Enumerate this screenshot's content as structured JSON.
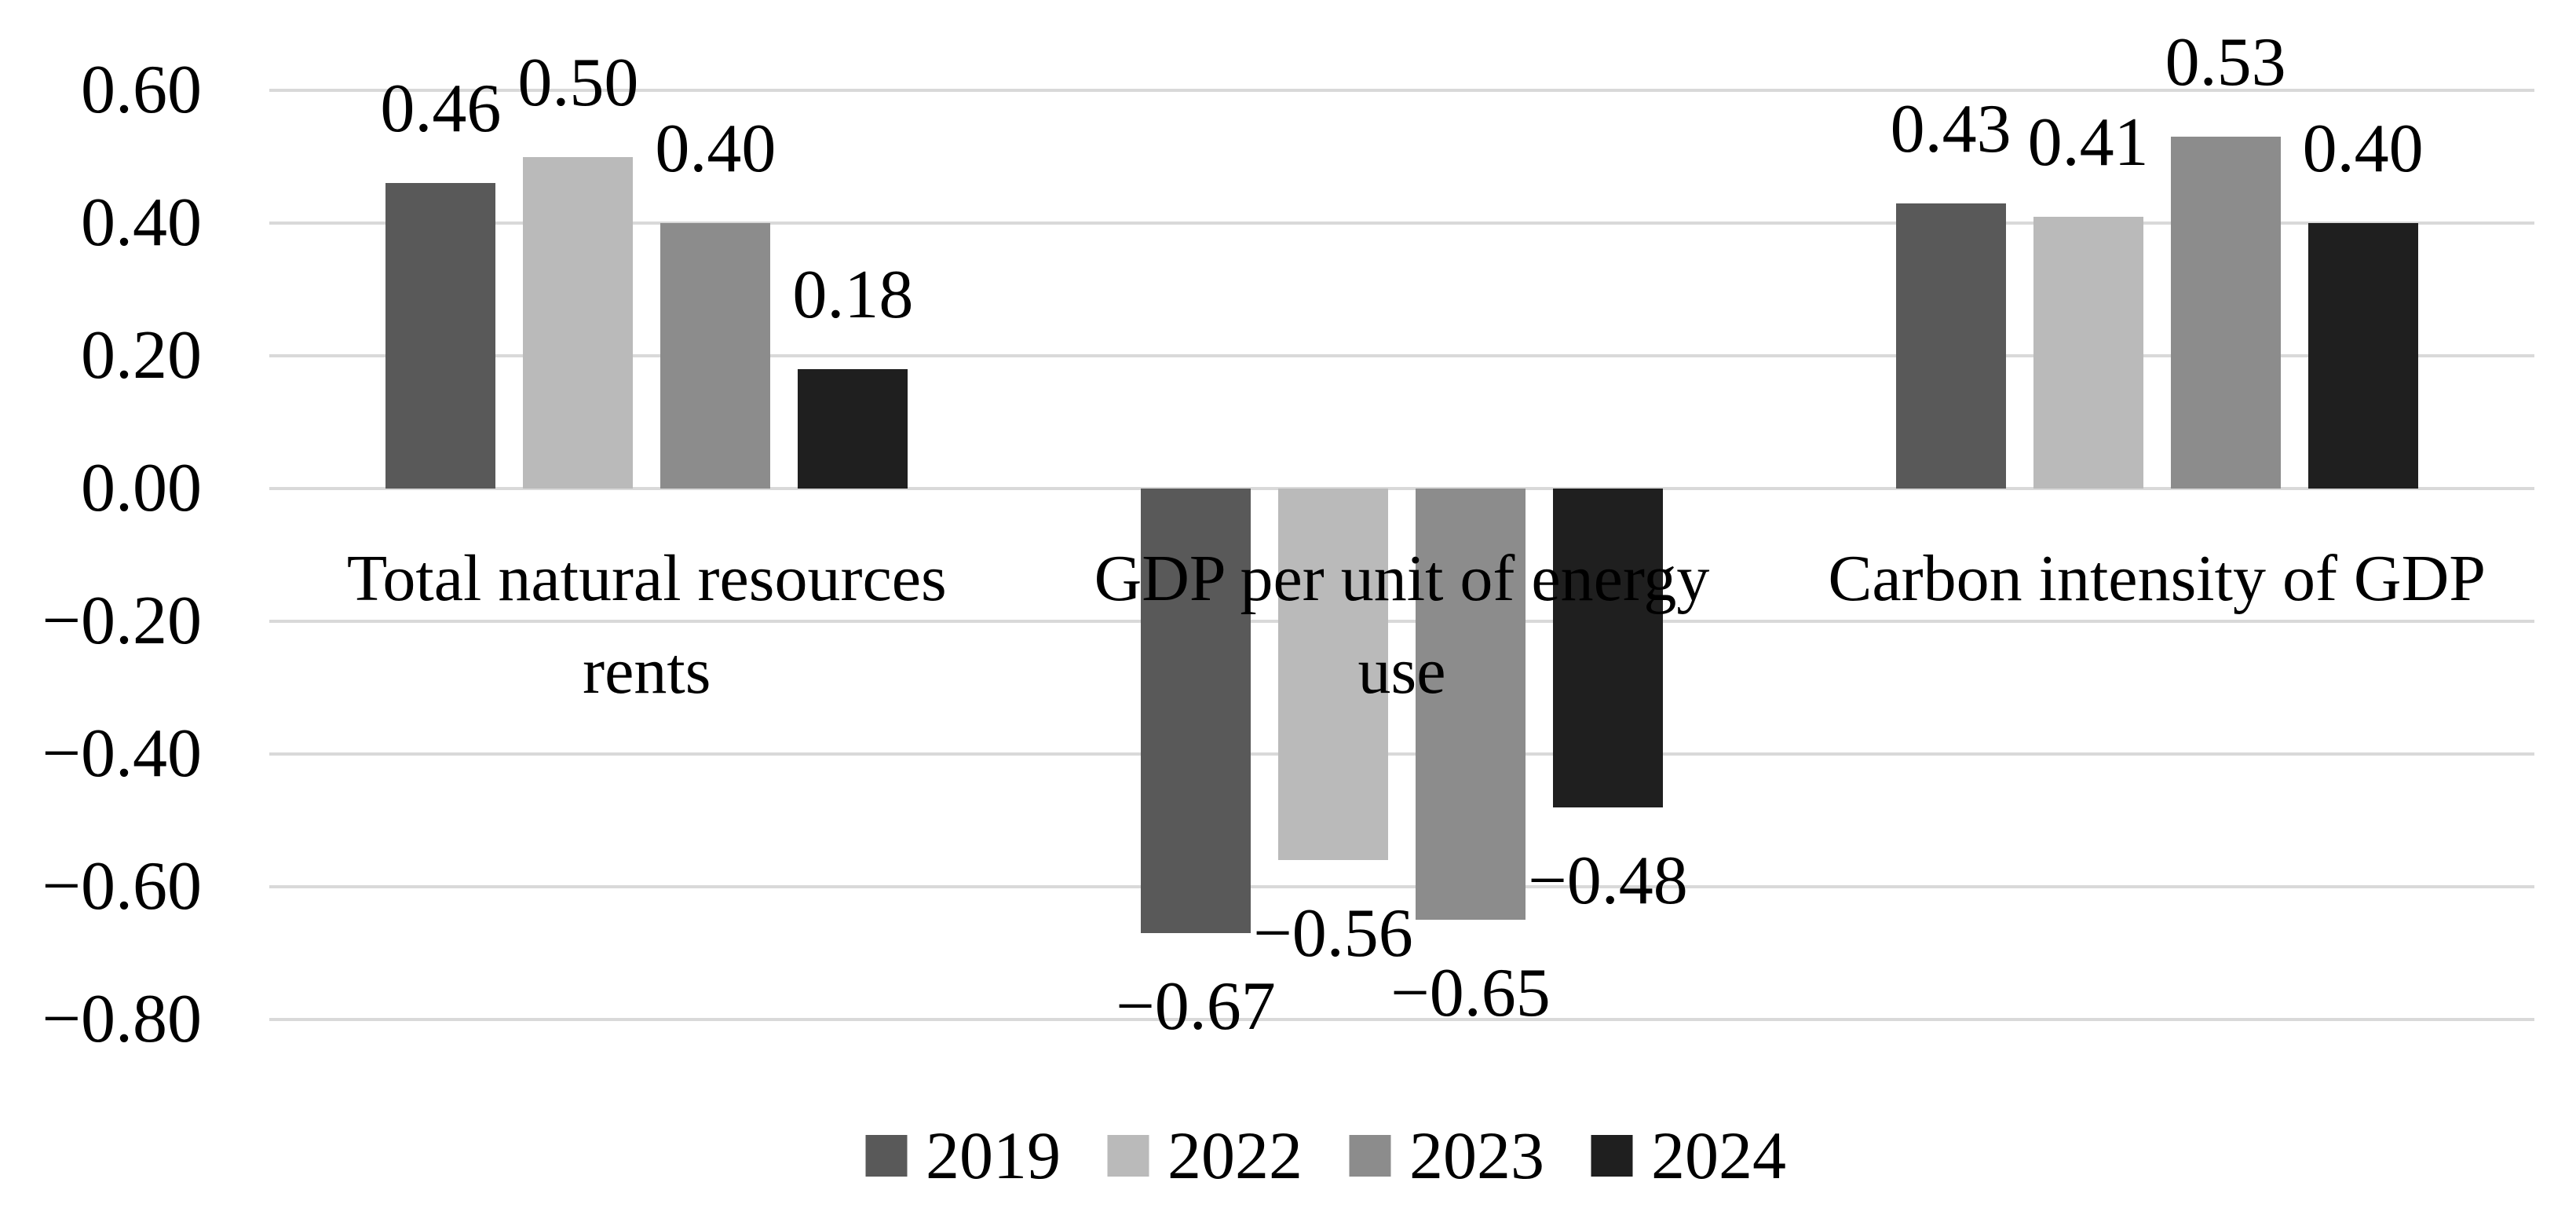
{
  "figure": {
    "background_color": "#ffffff",
    "text_color": "#000000",
    "gridline_color": "#D9D9D9"
  },
  "chart_data": {
    "type": "bar",
    "title": "",
    "xlabel": "",
    "ylabel": "",
    "categories": [
      "Total natural resources rents",
      "GDP per unit of energy use",
      "Carbon intensity of GDP"
    ],
    "series": [
      {
        "name": "2019",
        "color": "#595959",
        "values": [
          0.46,
          -0.67,
          0.43
        ],
        "labels": [
          "0.46",
          "−0.67",
          "0.43"
        ]
      },
      {
        "name": "2022",
        "color": "#BABABA",
        "values": [
          0.5,
          -0.56,
          0.41
        ],
        "labels": [
          "0.50",
          "−0.56",
          "0.41"
        ]
      },
      {
        "name": "2023",
        "color": "#8C8C8C",
        "values": [
          0.4,
          -0.65,
          0.53
        ],
        "labels": [
          "0.40",
          "−0.65",
          "0.53"
        ]
      },
      {
        "name": "2024",
        "color": "#1F1F1F",
        "values": [
          0.18,
          -0.48,
          0.4
        ],
        "labels": [
          "0.18",
          "−0.48",
          "0.40"
        ]
      }
    ],
    "y_axis": {
      "min": -0.8,
      "max": 0.6,
      "step": 0.2,
      "tick_values": [
        0.6,
        0.4,
        0.2,
        0.0,
        -0.2,
        -0.4,
        -0.6,
        -0.8
      ],
      "tick_labels": [
        "0.60",
        "0.40",
        "0.20",
        "0.00",
        "−0.20",
        "−0.40",
        "−0.60",
        "−0.80"
      ]
    },
    "grid": true,
    "legend": {
      "position": "bottom",
      "entries": [
        "2019",
        "2022",
        "2023",
        "2024"
      ]
    }
  }
}
